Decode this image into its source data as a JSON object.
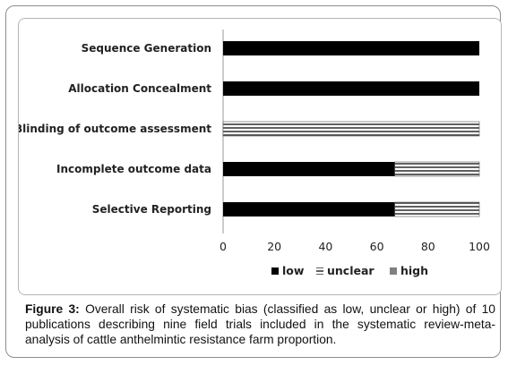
{
  "chart_data": {
    "type": "bar",
    "orientation": "horizontal",
    "stacked": true,
    "categories": [
      "Sequence Generation",
      "Allocation Concealment",
      "Blinding of outcome assessment",
      "Incomplete outcome data",
      "Selective Reporting"
    ],
    "series": [
      {
        "name": "low",
        "color": "#000000",
        "values": [
          100,
          100,
          0,
          67,
          67
        ]
      },
      {
        "name": "unclear",
        "color": "striped",
        "values": [
          0,
          0,
          100,
          33,
          33
        ]
      },
      {
        "name": "high",
        "color": "#808080",
        "values": [
          0,
          0,
          0,
          0,
          0
        ]
      }
    ],
    "xlim": [
      0,
      100
    ],
    "xticks": [
      "0",
      "20",
      "40",
      "60",
      "80",
      "100"
    ],
    "legend_position": "bottom"
  },
  "caption": {
    "label": "Figure 3:",
    "text": " Overall risk of systematic bias (classified as low, unclear or high) of 10 publications describing nine field trials included in the systematic review-meta-analysis of cattle anthelmintic resistance farm proportion."
  }
}
